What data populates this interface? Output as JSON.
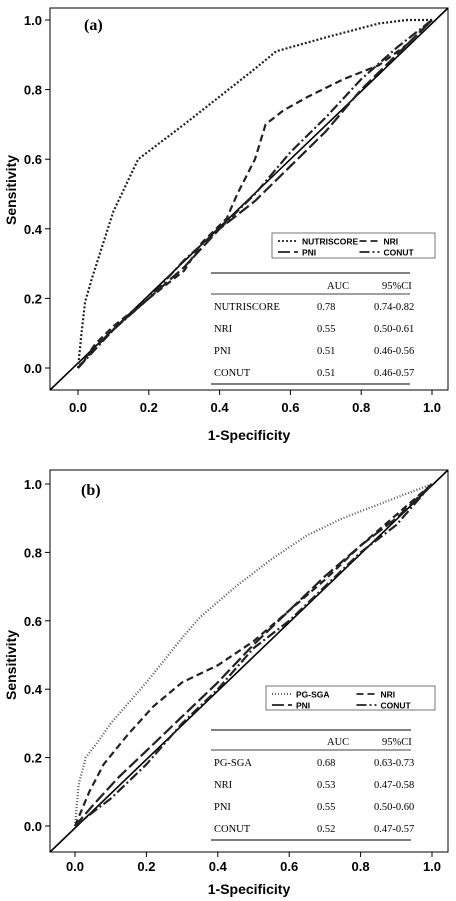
{
  "chart_data": [
    {
      "type": "line",
      "panel_label": "(a)",
      "xlabel": "1-Specificity",
      "ylabel": "Sensitivity",
      "xlim": [
        0,
        1
      ],
      "ylim": [
        0,
        1
      ],
      "x_ticks": [
        "0.0",
        "0.2",
        "0.4",
        "0.6",
        "0.8",
        "1.0"
      ],
      "y_ticks": [
        "0.0",
        "0.2",
        "0.4",
        "0.6",
        "0.8",
        "1.0"
      ],
      "grid": false,
      "legend_position": "bottom-right",
      "series": [
        {
          "name": "NUTRISCORE",
          "dash": "2,2",
          "color": "#222222",
          "points": [
            [
              0,
              0
            ],
            [
              0.01,
              0.1
            ],
            [
              0.02,
              0.19
            ],
            [
              0.04,
              0.26
            ],
            [
              0.1,
              0.45
            ],
            [
              0.17,
              0.6
            ],
            [
              0.3,
              0.7
            ],
            [
              0.4,
              0.78
            ],
            [
              0.5,
              0.86
            ],
            [
              0.56,
              0.91
            ],
            [
              0.7,
              0.95
            ],
            [
              0.85,
              0.99
            ],
            [
              0.93,
              1.0
            ],
            [
              1,
              1.0
            ]
          ]
        },
        {
          "name": "NRI",
          "dash": "7,4",
          "color": "#222222",
          "points": [
            [
              0,
              0
            ],
            [
              0.05,
              0.07
            ],
            [
              0.1,
              0.12
            ],
            [
              0.2,
              0.2
            ],
            [
              0.3,
              0.28
            ],
            [
              0.35,
              0.36
            ],
            [
              0.42,
              0.43
            ],
            [
              0.45,
              0.5
            ],
            [
              0.5,
              0.6
            ],
            [
              0.53,
              0.7
            ],
            [
              0.58,
              0.74
            ],
            [
              0.65,
              0.78
            ],
            [
              0.75,
              0.83
            ],
            [
              0.85,
              0.87
            ],
            [
              0.93,
              0.93
            ],
            [
              1,
              1.0
            ]
          ]
        },
        {
          "name": "PNI",
          "dash": "12,4",
          "color": "#222222",
          "points": [
            [
              0,
              0
            ],
            [
              0.05,
              0.06
            ],
            [
              0.12,
              0.13
            ],
            [
              0.2,
              0.2
            ],
            [
              0.3,
              0.29
            ],
            [
              0.4,
              0.4
            ],
            [
              0.5,
              0.48
            ],
            [
              0.6,
              0.58
            ],
            [
              0.7,
              0.68
            ],
            [
              0.8,
              0.8
            ],
            [
              0.9,
              0.9
            ],
            [
              1,
              1.0
            ]
          ]
        },
        {
          "name": "CONUT",
          "dash": "10,3,2,3",
          "color": "#222222",
          "points": [
            [
              0,
              0
            ],
            [
              0.1,
              0.11
            ],
            [
              0.2,
              0.2
            ],
            [
              0.3,
              0.31
            ],
            [
              0.4,
              0.4
            ],
            [
              0.5,
              0.5
            ],
            [
              0.6,
              0.62
            ],
            [
              0.7,
              0.72
            ],
            [
              0.8,
              0.83
            ],
            [
              0.9,
              0.92
            ],
            [
              1,
              1.0
            ]
          ]
        }
      ],
      "table": {
        "headers": [
          "",
          "AUC",
          "95%CI"
        ],
        "rows": [
          [
            "NUTRISCORE",
            "0.78",
            "0.74-0.82"
          ],
          [
            "NRI",
            "0.55",
            "0.50-0.61"
          ],
          [
            "PNI",
            "0.51",
            "0.46-0.56"
          ],
          [
            "CONUT",
            "0.51",
            "0.46-0.57"
          ]
        ]
      }
    },
    {
      "type": "line",
      "panel_label": "(b)",
      "xlabel": "1-Specificity",
      "ylabel": "Sensitivity",
      "xlim": [
        0,
        1
      ],
      "ylim": [
        0,
        1
      ],
      "x_ticks": [
        "0.0",
        "0.2",
        "0.4",
        "0.6",
        "0.8",
        "1.0"
      ],
      "y_ticks": [
        "0.0",
        "0.2",
        "0.4",
        "0.6",
        "0.8",
        "1.0"
      ],
      "grid": false,
      "legend_position": "bottom-right",
      "series": [
        {
          "name": "PG-SGA",
          "dash": "1,2",
          "color": "#555555",
          "points": [
            [
              0,
              0
            ],
            [
              0.01,
              0.12
            ],
            [
              0.03,
              0.2
            ],
            [
              0.06,
              0.24
            ],
            [
              0.1,
              0.3
            ],
            [
              0.2,
              0.42
            ],
            [
              0.3,
              0.55
            ],
            [
              0.35,
              0.61
            ],
            [
              0.45,
              0.7
            ],
            [
              0.55,
              0.78
            ],
            [
              0.65,
              0.85
            ],
            [
              0.75,
              0.9
            ],
            [
              0.85,
              0.94
            ],
            [
              0.95,
              0.98
            ],
            [
              1,
              1.0
            ]
          ]
        },
        {
          "name": "NRI",
          "dash": "7,4",
          "color": "#222222",
          "points": [
            [
              0,
              0
            ],
            [
              0.04,
              0.1
            ],
            [
              0.08,
              0.18
            ],
            [
              0.15,
              0.27
            ],
            [
              0.22,
              0.35
            ],
            [
              0.3,
              0.42
            ],
            [
              0.4,
              0.47
            ],
            [
              0.5,
              0.54
            ],
            [
              0.6,
              0.63
            ],
            [
              0.7,
              0.72
            ],
            [
              0.8,
              0.82
            ],
            [
              0.9,
              0.91
            ],
            [
              1,
              1.0
            ]
          ]
        },
        {
          "name": "PNI",
          "dash": "12,4",
          "color": "#222222",
          "points": [
            [
              0,
              0
            ],
            [
              0.05,
              0.06
            ],
            [
              0.12,
              0.14
            ],
            [
              0.2,
              0.22
            ],
            [
              0.3,
              0.32
            ],
            [
              0.4,
              0.42
            ],
            [
              0.5,
              0.53
            ],
            [
              0.6,
              0.63
            ],
            [
              0.7,
              0.73
            ],
            [
              0.8,
              0.82
            ],
            [
              0.9,
              0.9
            ],
            [
              1,
              1.0
            ]
          ]
        },
        {
          "name": "CONUT",
          "dash": "10,3,2,3",
          "color": "#222222",
          "points": [
            [
              0,
              0
            ],
            [
              0.05,
              0.04
            ],
            [
              0.1,
              0.08
            ],
            [
              0.2,
              0.18
            ],
            [
              0.3,
              0.3
            ],
            [
              0.4,
              0.4
            ],
            [
              0.5,
              0.52
            ],
            [
              0.6,
              0.6
            ],
            [
              0.7,
              0.7
            ],
            [
              0.8,
              0.8
            ],
            [
              0.9,
              0.88
            ],
            [
              1,
              1.0
            ]
          ]
        }
      ],
      "table": {
        "headers": [
          "",
          "AUC",
          "95%CI"
        ],
        "rows": [
          [
            "PG-SGA",
            "0.68",
            "0.63-0.73"
          ],
          [
            "NRI",
            "0.53",
            "0.47-0.58"
          ],
          [
            "PNI",
            "0.55",
            "0.50-0.60"
          ],
          [
            "CONUT",
            "0.52",
            "0.47-0.57"
          ]
        ]
      }
    }
  ]
}
